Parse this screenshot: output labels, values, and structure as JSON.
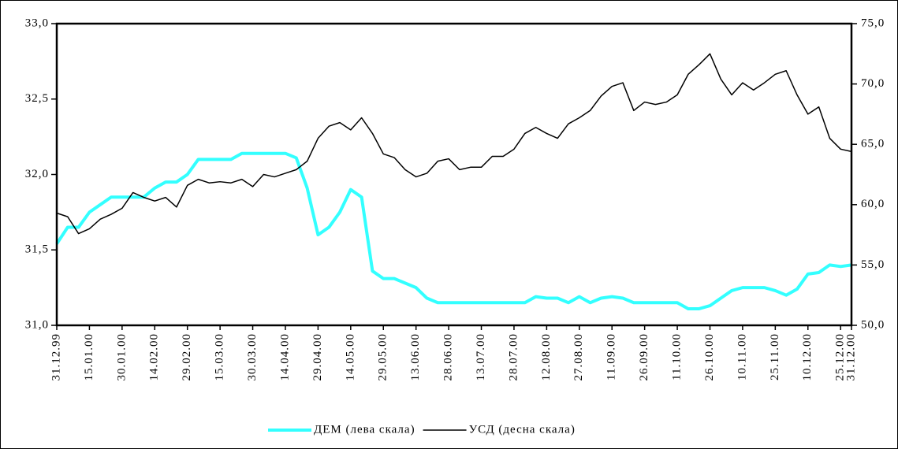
{
  "chart_data": {
    "type": "line",
    "categories": [
      "31.12.99",
      null,
      null,
      "15.01.00",
      null,
      null,
      "30.01.00",
      null,
      null,
      "14.02.00",
      null,
      null,
      "29.02.00",
      null,
      null,
      "15.03.00",
      null,
      null,
      "30.03.00",
      null,
      null,
      "14.04.00",
      null,
      null,
      "29.04.00",
      null,
      null,
      "14.05.00",
      null,
      null,
      "29.05.00",
      null,
      null,
      "13.06.00",
      null,
      null,
      "28.06.00",
      null,
      null,
      "13.07.00",
      null,
      null,
      "28.07.00",
      null,
      null,
      "12.08.00",
      null,
      null,
      "27.08.00",
      null,
      null,
      "11.09.00",
      null,
      null,
      "26.09.00",
      null,
      null,
      "11.10.00",
      null,
      null,
      "26.10.00",
      null,
      null,
      "10.11.00",
      null,
      null,
      "25.11.00",
      null,
      null,
      "10.12.00",
      null,
      null,
      "25.12.00",
      "31.12.00"
    ],
    "series": [
      {
        "name": "ДЕМ (лева скала)",
        "color": "#33ffff",
        "axis": "y",
        "values": [
          31.54,
          31.65,
          31.65,
          31.75,
          31.8,
          31.85,
          31.85,
          31.85,
          31.85,
          31.91,
          31.95,
          31.95,
          32.0,
          32.1,
          32.1,
          32.1,
          32.1,
          32.14,
          32.14,
          32.14,
          32.14,
          32.14,
          32.11,
          31.91,
          31.6,
          31.65,
          31.75,
          31.9,
          31.85,
          31.36,
          31.31,
          31.31,
          31.28,
          31.25,
          31.18,
          31.15,
          31.15,
          31.15,
          31.15,
          31.15,
          31.15,
          31.15,
          31.15,
          31.15,
          31.19,
          31.18,
          31.18,
          31.15,
          31.19,
          31.15,
          31.18,
          31.19,
          31.18,
          31.15,
          31.15,
          31.15,
          31.15,
          31.15,
          31.11,
          31.11,
          31.13,
          31.18,
          31.23,
          31.25,
          31.25,
          31.25,
          31.23,
          31.2,
          31.24,
          31.34,
          31.35,
          31.4,
          31.39,
          31.4
        ]
      },
      {
        "name": "УСД (десна скала)",
        "color": "#000000",
        "axis": "y2",
        "values": [
          59.3,
          59.0,
          57.6,
          58.0,
          58.8,
          59.2,
          59.7,
          61.0,
          60.6,
          60.3,
          60.6,
          59.8,
          61.6,
          62.1,
          61.8,
          61.9,
          61.8,
          62.1,
          61.5,
          62.5,
          62.3,
          62.6,
          62.9,
          63.6,
          65.5,
          66.5,
          66.8,
          66.2,
          67.2,
          65.9,
          64.2,
          63.9,
          62.9,
          62.3,
          62.6,
          63.6,
          63.8,
          62.9,
          63.1,
          63.1,
          64.0,
          64.0,
          64.6,
          65.9,
          66.4,
          65.9,
          65.5,
          66.7,
          67.2,
          67.8,
          69.0,
          69.8,
          70.1,
          67.8,
          68.5,
          68.3,
          68.5,
          69.1,
          70.8,
          71.6,
          72.5,
          70.4,
          69.1,
          70.1,
          69.5,
          70.1,
          70.8,
          71.1,
          69.1,
          67.5,
          68.1,
          65.5,
          64.6,
          64.4
        ]
      }
    ],
    "ylim": [
      31,
      33
    ],
    "yticks": [
      {
        "value": 31,
        "label": "31,0"
      },
      {
        "value": 31.5,
        "label": "31,5"
      },
      {
        "value": 32,
        "label": "32,0"
      },
      {
        "value": 32.5,
        "label": "32,5"
      },
      {
        "value": 33,
        "label": "33,0"
      }
    ],
    "y2lim": [
      50,
      75
    ],
    "y2ticks": [
      {
        "value": 50,
        "label": "50,0"
      },
      {
        "value": 55,
        "label": "55,0"
      },
      {
        "value": 60,
        "label": "60,0"
      },
      {
        "value": 65,
        "label": "65,0"
      },
      {
        "value": 70,
        "label": "70,0"
      },
      {
        "value": 75,
        "label": "75,0"
      }
    ],
    "grid": false,
    "legend": "bottom"
  }
}
